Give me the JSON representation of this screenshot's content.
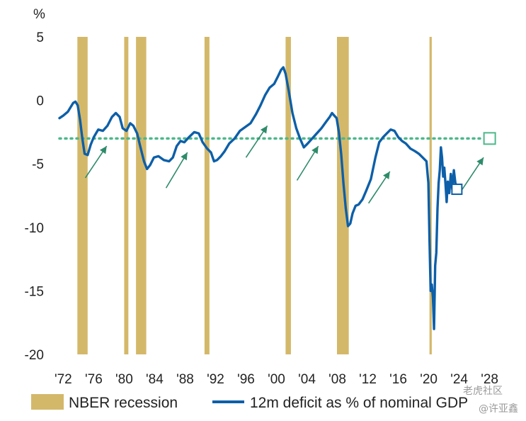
{
  "chart_data": {
    "type": "line",
    "unit_label": "%",
    "xlim": [
      1971.5,
      2028.5
    ],
    "ylim": [
      -20,
      5
    ],
    "y_ticks": [
      5,
      0,
      -5,
      -10,
      -15,
      -20
    ],
    "y_tick_labels": [
      "5",
      "0",
      "-5",
      "-10",
      "-15",
      "-20"
    ],
    "x_ticks": [
      1972,
      1976,
      1980,
      1984,
      1988,
      1992,
      1996,
      2000,
      2004,
      2008,
      2012,
      2016,
      2020,
      2024,
      2028
    ],
    "x_tick_labels": [
      "'72",
      "'76",
      "'80",
      "'84",
      "'88",
      "'92",
      "'96",
      "'00",
      "'04",
      "'08",
      "'12",
      "'16",
      "'20",
      "'24",
      "'28"
    ],
    "recession_color": "#d4b86a",
    "line_color": "#0d5fa8",
    "reference_color": "#4cb88a",
    "arrow_color": "#2e8b6a",
    "recessions": [
      {
        "start": 1973.85,
        "end": 1975.2
      },
      {
        "start": 1980.0,
        "end": 1980.55
      },
      {
        "start": 1981.55,
        "end": 1982.9
      },
      {
        "start": 1990.55,
        "end": 1991.2
      },
      {
        "start": 2001.2,
        "end": 2001.9
      },
      {
        "start": 2007.95,
        "end": 2009.5
      },
      {
        "start": 2020.1,
        "end": 2020.4
      }
    ],
    "series": [
      {
        "name": "12m deficit as % of nominal GDP",
        "x": [
          1971.5,
          1972.0,
          1972.6,
          1973.0,
          1973.3,
          1973.6,
          1973.9,
          1974.2,
          1974.5,
          1974.8,
          1975.2,
          1975.6,
          1976.0,
          1976.6,
          1977.2,
          1977.8,
          1978.4,
          1978.9,
          1979.4,
          1979.8,
          1980.3,
          1980.8,
          1981.2,
          1981.7,
          1982.1,
          1982.6,
          1983.0,
          1983.4,
          1983.9,
          1984.5,
          1985.2,
          1985.9,
          1986.4,
          1986.9,
          1987.4,
          1987.9,
          1988.5,
          1989.2,
          1989.8,
          1990.3,
          1990.9,
          1991.4,
          1991.8,
          1992.2,
          1992.7,
          1993.2,
          1993.8,
          1994.5,
          1995.2,
          1995.9,
          1996.6,
          1997.3,
          1997.9,
          1998.5,
          1999.1,
          1999.7,
          2000.2,
          2000.6,
          2000.9,
          2001.2,
          2001.6,
          2002.1,
          2002.6,
          2003.1,
          2003.6,
          2004.1,
          2004.7,
          2005.3,
          2005.9,
          2006.5,
          2007.0,
          2007.3,
          2007.6,
          2007.9,
          2008.2,
          2008.5,
          2008.8,
          2009.1,
          2009.4,
          2009.7,
          2010.0,
          2010.4,
          2010.8,
          2011.3,
          2011.8,
          2012.4,
          2013.0,
          2013.5,
          2014.0,
          2014.5,
          2015.0,
          2015.5,
          2016.0,
          2016.5,
          2017.0,
          2017.6,
          2018.2,
          2018.7,
          2019.2,
          2019.7,
          2019.95,
          2020.1,
          2020.25,
          2020.4,
          2020.55,
          2020.7,
          2020.85,
          2021.0,
          2021.15,
          2021.3,
          2021.45,
          2021.6,
          2021.75,
          2021.9,
          2022.05,
          2022.2,
          2022.35,
          2022.5,
          2022.7,
          2022.9,
          2023.1,
          2023.3,
          2023.5,
          2023.7
        ],
        "y": [
          -1.4,
          -1.2,
          -0.9,
          -0.5,
          -0.2,
          -0.1,
          -0.4,
          -1.5,
          -3.0,
          -4.2,
          -4.3,
          -3.5,
          -2.9,
          -2.3,
          -2.4,
          -2.0,
          -1.3,
          -1.0,
          -1.3,
          -2.2,
          -2.4,
          -1.8,
          -2.0,
          -2.6,
          -3.6,
          -4.8,
          -5.4,
          -5.1,
          -4.5,
          -4.4,
          -4.7,
          -4.8,
          -4.5,
          -3.6,
          -3.2,
          -3.3,
          -2.9,
          -2.5,
          -2.6,
          -3.3,
          -3.8,
          -4.1,
          -4.8,
          -4.7,
          -4.4,
          -4.0,
          -3.4,
          -3.0,
          -2.4,
          -2.1,
          -1.8,
          -1.1,
          -0.4,
          0.4,
          1.0,
          1.3,
          1.9,
          2.4,
          2.6,
          2.1,
          0.8,
          -1.0,
          -2.2,
          -3.0,
          -3.7,
          -3.4,
          -3.0,
          -2.6,
          -2.2,
          -1.7,
          -1.3,
          -1.0,
          -1.2,
          -1.4,
          -2.5,
          -4.2,
          -6.5,
          -8.5,
          -9.9,
          -9.7,
          -8.9,
          -8.3,
          -8.2,
          -7.8,
          -7.1,
          -6.2,
          -4.5,
          -3.3,
          -2.9,
          -2.6,
          -2.3,
          -2.4,
          -2.9,
          -3.2,
          -3.4,
          -3.8,
          -4.0,
          -4.2,
          -4.5,
          -4.8,
          -6.5,
          -11.0,
          -15.0,
          -14.5,
          -15.5,
          -18.0,
          -13.0,
          -12.0,
          -8.5,
          -6.5,
          -5.5,
          -3.7,
          -4.5,
          -6.0,
          -5.3,
          -6.5,
          -8.0,
          -6.4,
          -7.3,
          -5.8,
          -7.0,
          -5.5,
          -6.5,
          -6.9
        ]
      }
    ],
    "reference": {
      "y": -3.0
    },
    "projection_point": {
      "x": 2028.0,
      "y": -3.0
    },
    "latest_point": {
      "x": 2023.7,
      "y": -7.0
    },
    "arrows": [
      {
        "x1": 1974.9,
        "y1": -6.1,
        "x2": 1977.7,
        "y2": -3.6
      },
      {
        "x1": 1985.5,
        "y1": -6.9,
        "x2": 1988.3,
        "y2": -4.1
      },
      {
        "x1": 1996.0,
        "y1": -4.5,
        "x2": 1998.8,
        "y2": -2.0
      },
      {
        "x1": 2002.7,
        "y1": -6.3,
        "x2": 2005.5,
        "y2": -3.6
      },
      {
        "x1": 2012.1,
        "y1": -8.1,
        "x2": 2014.9,
        "y2": -5.6
      },
      {
        "x1": 2024.3,
        "y1": -7.1,
        "x2": 2027.2,
        "y2": -4.5
      }
    ],
    "legend": [
      {
        "type": "bar",
        "label": "NBER recession"
      },
      {
        "type": "line",
        "label": "12m deficit as % of nominal GDP"
      }
    ]
  },
  "watermark": {
    "line1": "老虎社区",
    "line2": "@许亚鑫"
  }
}
